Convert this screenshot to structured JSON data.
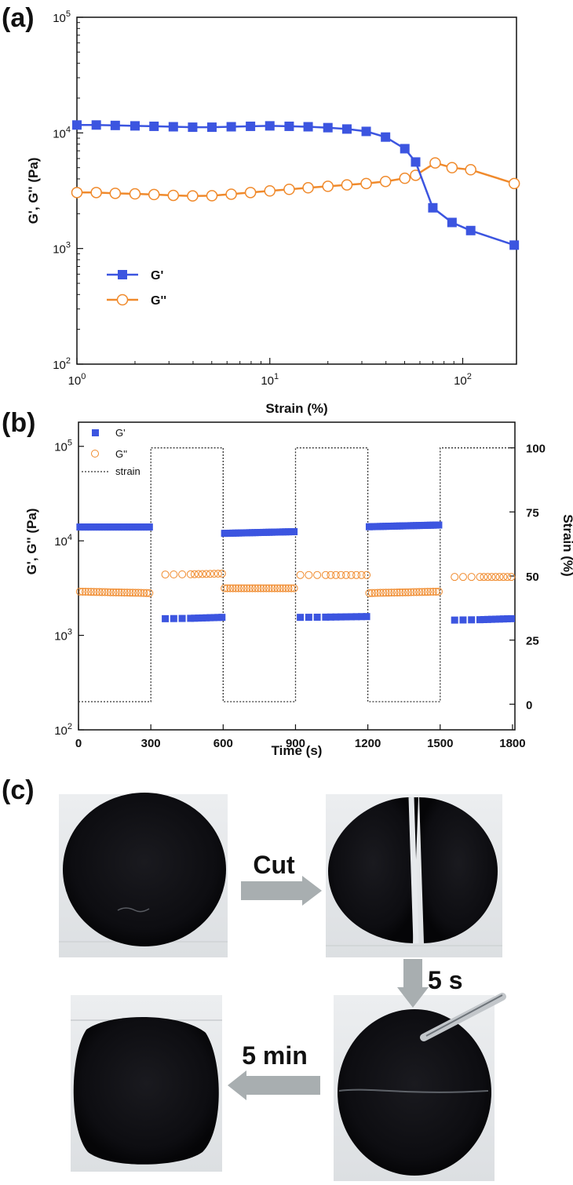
{
  "figure": {
    "panel_labels": [
      "(a)",
      "(b)",
      "(c)"
    ]
  },
  "colors": {
    "g_prime": "#3c55e0",
    "g_double_prime": "#f08a2c",
    "strain": "#333333",
    "arrow": "#a8aeb0"
  },
  "chart_data": [
    {
      "panel": "(a)",
      "type": "line",
      "xlabel": "Strain (%)",
      "ylabel": "G', G'' (Pa)",
      "xscale": "log",
      "yscale": "log",
      "xlim": [
        1,
        190
      ],
      "ylim": [
        100,
        100000
      ],
      "x_ticks": [
        {
          "value": 1,
          "mant": "10",
          "exp": "0"
        },
        {
          "value": 10,
          "mant": "10",
          "exp": "1"
        },
        {
          "value": 100,
          "mant": "10",
          "exp": "2"
        }
      ],
      "y_ticks": [
        {
          "value": 100,
          "mant": "10",
          "exp": "2"
        },
        {
          "value": 1000,
          "mant": "10",
          "exp": "3"
        },
        {
          "value": 10000,
          "mant": "10",
          "exp": "4"
        },
        {
          "value": 100000,
          "mant": "10",
          "exp": "5"
        }
      ],
      "legend_position": "lower-left",
      "series": [
        {
          "name": "G'",
          "marker": "filled-square",
          "x": [
            1.0,
            1.26,
            1.58,
            2.0,
            2.51,
            3.16,
            3.98,
            5.01,
            6.31,
            7.94,
            10.0,
            12.6,
            15.8,
            20.0,
            25.1,
            31.6,
            39.8,
            50.1,
            57.0,
            70.0,
            88.0,
            110.0,
            185.0
          ],
          "y": [
            11700,
            11700,
            11600,
            11500,
            11400,
            11300,
            11200,
            11200,
            11300,
            11400,
            11500,
            11400,
            11300,
            11100,
            10800,
            10300,
            9200,
            7300,
            5600,
            2250,
            1680,
            1430,
            1070
          ]
        },
        {
          "name": "G''",
          "marker": "open-circle",
          "x": [
            1.0,
            1.26,
            1.58,
            2.0,
            2.51,
            3.16,
            3.98,
            5.01,
            6.31,
            7.94,
            10.0,
            12.6,
            15.8,
            20.0,
            25.1,
            31.6,
            39.8,
            50.1,
            57.0,
            72.0,
            88.0,
            110.0,
            185.0
          ],
          "y": [
            3050,
            3050,
            3000,
            2970,
            2930,
            2880,
            2850,
            2860,
            2950,
            3050,
            3150,
            3250,
            3350,
            3450,
            3550,
            3650,
            3800,
            4050,
            4300,
            5500,
            5000,
            4800,
            3650
          ]
        }
      ]
    },
    {
      "panel": "(b)",
      "type": "scatter",
      "xlabel": "Time (s)",
      "ylabel": "G', G'' (Pa)",
      "y2label": "Strain (%)",
      "xlim": [
        0,
        1810
      ],
      "ylim": [
        100,
        180000
      ],
      "yscale": "log",
      "y2lim": [
        -10,
        110
      ],
      "x_ticks": [
        0,
        300,
        600,
        900,
        1200,
        1500,
        1800
      ],
      "y_ticks": [
        {
          "value": 100,
          "mant": "10",
          "exp": "2"
        },
        {
          "value": 1000,
          "mant": "10",
          "exp": "3"
        },
        {
          "value": 10000,
          "mant": "10",
          "exp": "4"
        },
        {
          "value": 100000,
          "mant": "10",
          "exp": "5"
        }
      ],
      "y2_ticks": [
        0,
        25,
        50,
        75,
        100
      ],
      "legend_position": "top-left",
      "segments": [
        {
          "t0": 0,
          "t1": 300,
          "strain": 1,
          "g1": 14000,
          "g2": 14000,
          "gg1": 2900,
          "gg2": 2800
        },
        {
          "t0": 360,
          "t1": 600,
          "strain": 100,
          "g1": 1500,
          "g2": 1550,
          "gg1": 4400,
          "gg2": 4500
        },
        {
          "t0": 600,
          "t1": 900,
          "strain": 1,
          "g1": 12000,
          "g2": 12500,
          "gg1": 3150,
          "gg2": 3150
        },
        {
          "t0": 920,
          "t1": 1200,
          "strain": 100,
          "g1": 1550,
          "g2": 1580,
          "gg1": 4350,
          "gg2": 4350
        },
        {
          "t0": 1200,
          "t1": 1500,
          "strain": 1,
          "g1": 14100,
          "g2": 14700,
          "gg1": 2800,
          "gg2": 2900
        },
        {
          "t0": 1560,
          "t1": 1800,
          "strain": 100,
          "g1": 1450,
          "g2": 1500,
          "gg1": 4150,
          "gg2": 4150
        }
      ],
      "series": [
        {
          "name": "G'",
          "marker": "filled-square"
        },
        {
          "name": "G''",
          "marker": "open-circle"
        },
        {
          "name": "strain",
          "marker": "dotted-line"
        }
      ]
    }
  ],
  "photos": {
    "labels": {
      "cut": "Cut",
      "five_s": "5 s",
      "five_min": "5 min"
    }
  }
}
